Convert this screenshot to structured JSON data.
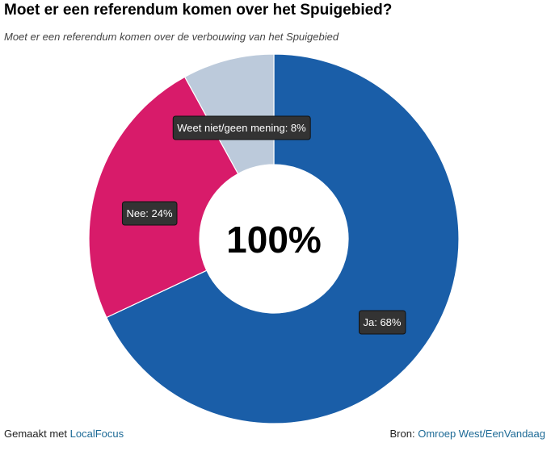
{
  "header": {
    "title": "Moet er een referendum komen over het Spuigebied?",
    "subtitle": "Moet er een referendum komen over de verbouwing van het Spuigebied"
  },
  "center_label": "100%",
  "footer": {
    "made_with_prefix": "Gemaakt met",
    "made_with_link": "LocalFocus",
    "source_prefix": "Bron:",
    "source_link": "Omroep West/EenVandaag"
  },
  "chart_data": {
    "type": "pie",
    "variant": "donut",
    "title": "Moet er een referendum komen over het Spuigebied?",
    "subtitle": "Moet er een referendum komen over de verbouwing van het Spuigebied",
    "center_text": "100%",
    "unit": "%",
    "slices": [
      {
        "label": "Ja",
        "value": 68,
        "color": "#1a5ea8",
        "data_label": "Ja: 68%"
      },
      {
        "label": "Weet niet/geen mening",
        "value": 8,
        "color": "#bccadb",
        "data_label": "Weet niet/geen mening: 8%"
      },
      {
        "label": "Nee",
        "value": 24,
        "color": "#d81b6a",
        "data_label": "Nee: 24%"
      }
    ],
    "slice_order": "clockwise from top: Ja, Nee, Weet niet/geen mening",
    "colors": {
      "tooltip_bg": "#333333",
      "tooltip_text": "#ffffff",
      "link": "#1d6a96"
    }
  }
}
